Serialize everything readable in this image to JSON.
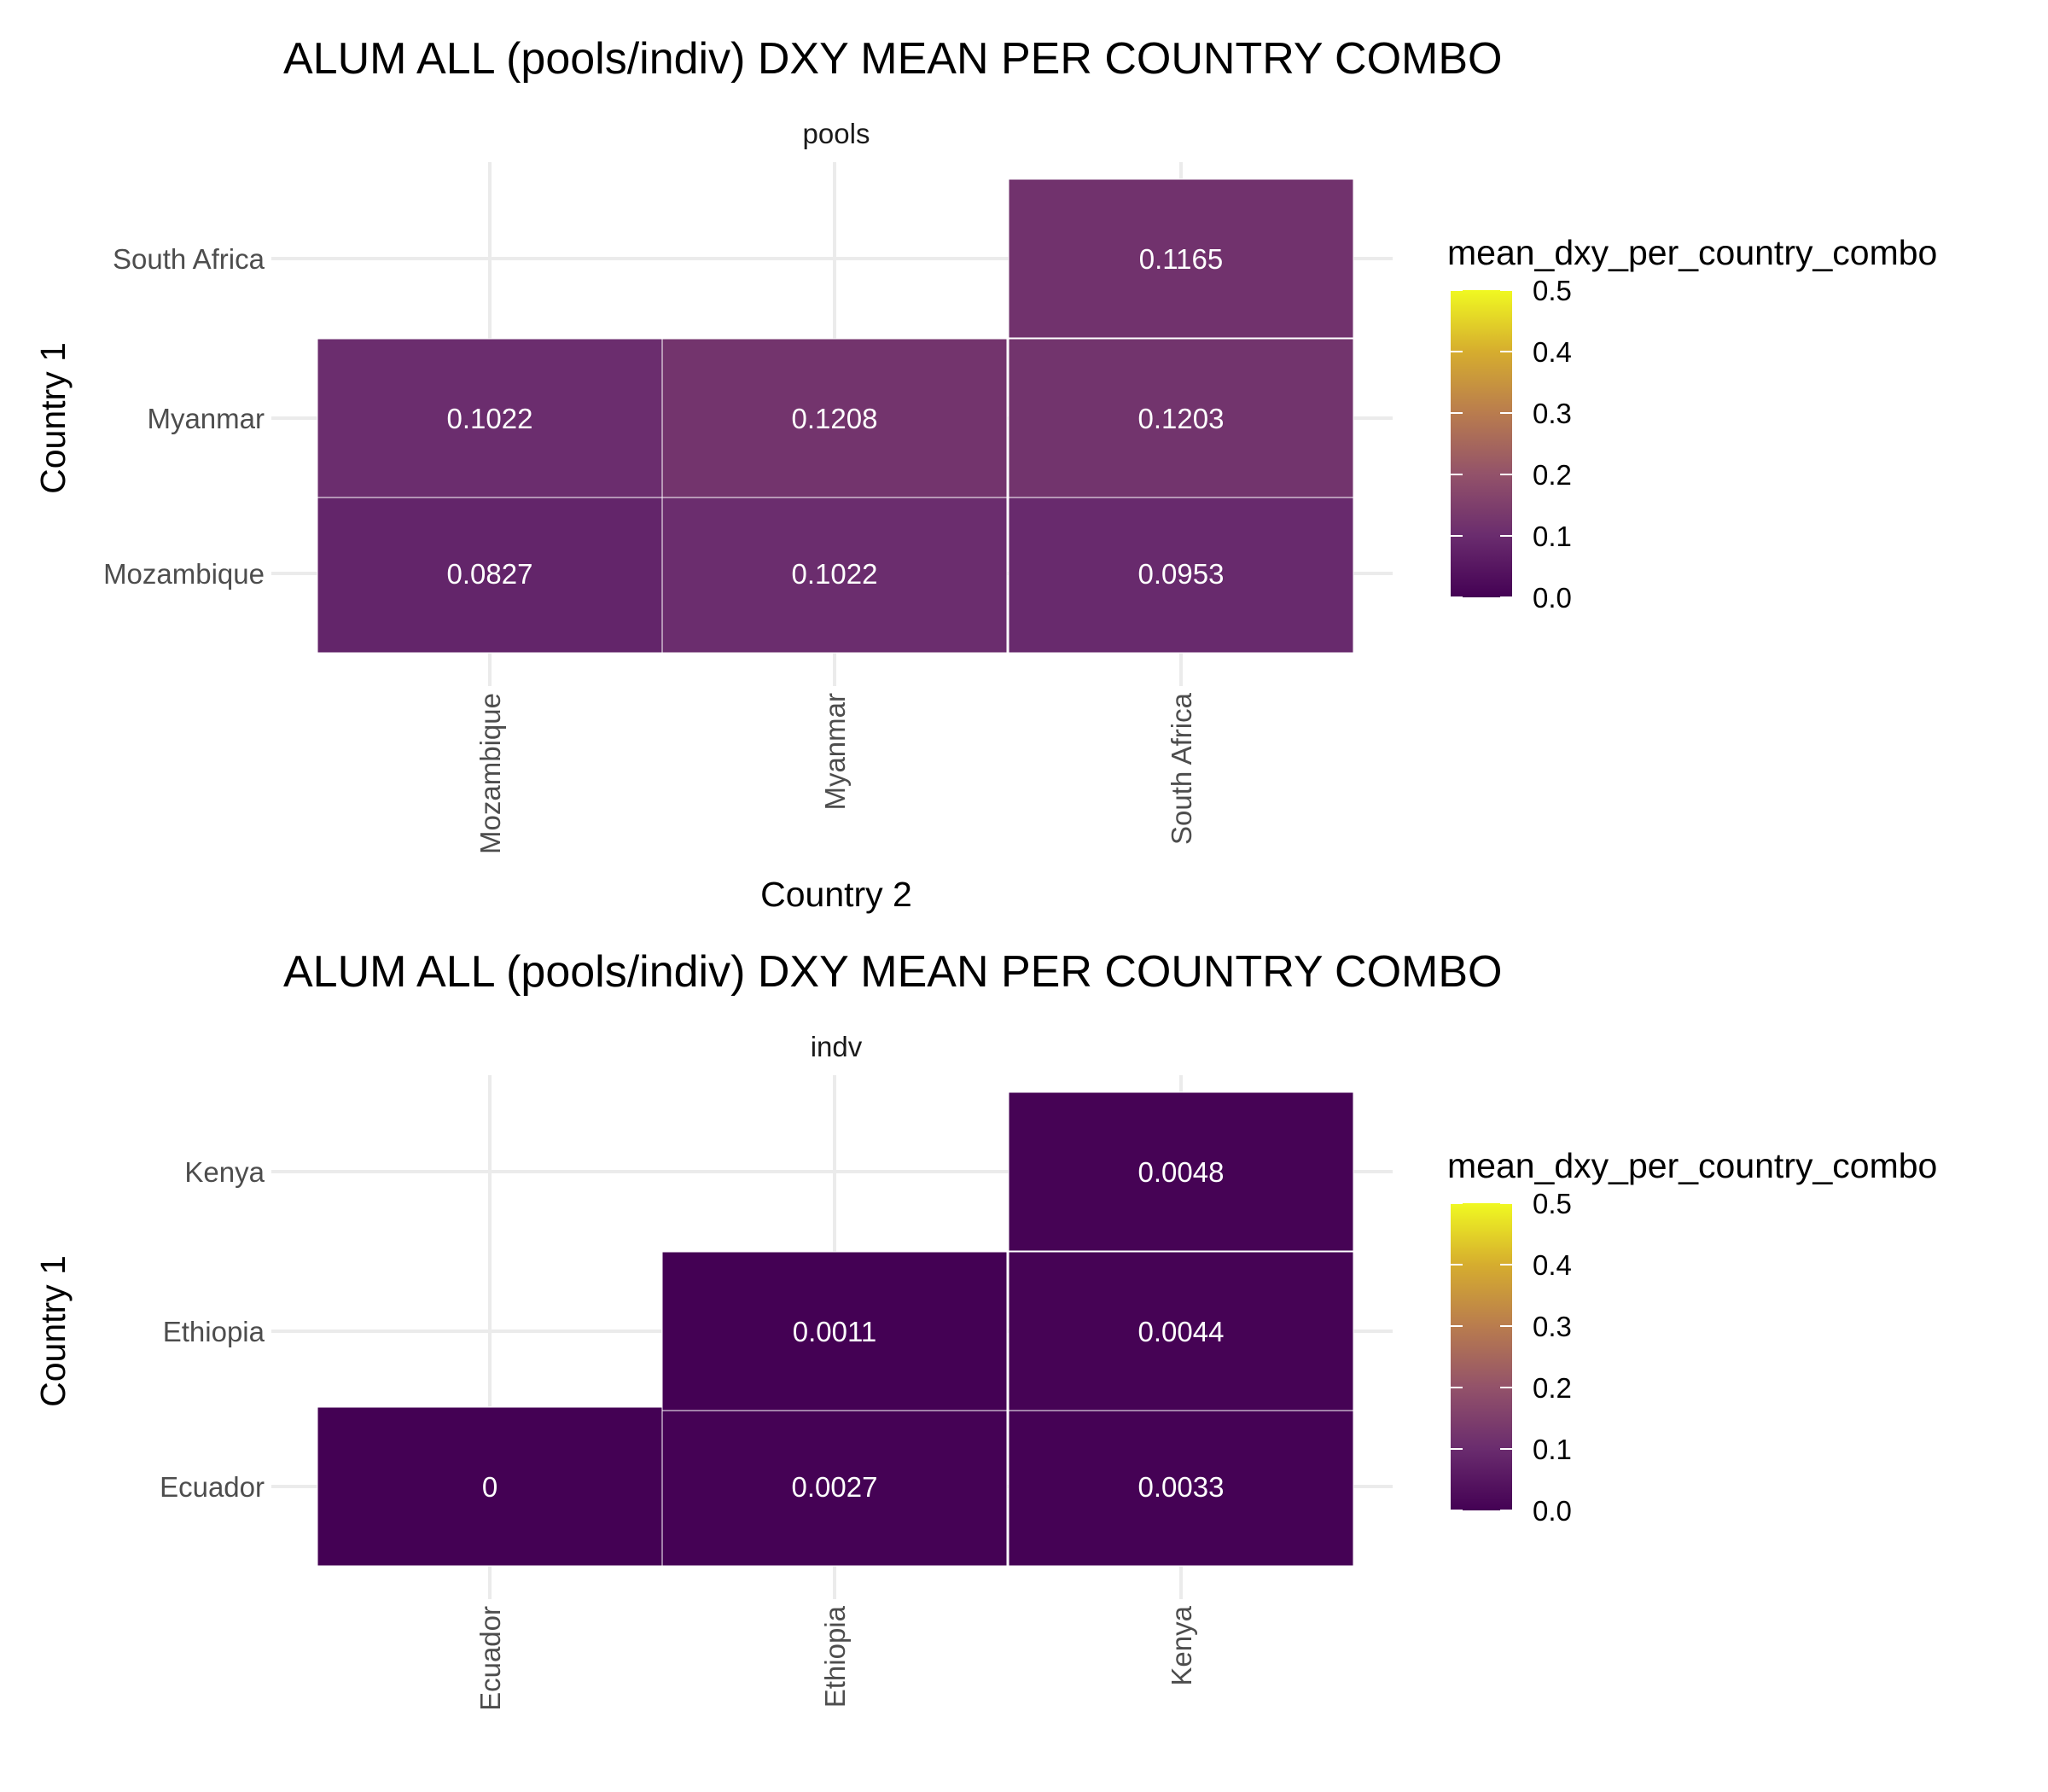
{
  "chart_data": [
    {
      "type": "heatmap",
      "title": "ALUM ALL (pools/indiv) DXY MEAN PER COUNTRY COMBO",
      "facet": "pools",
      "xlabel": "Country 2",
      "ylabel": "Country 1",
      "x_categories": [
        "Mozambique",
        "Myanmar",
        "South Africa"
      ],
      "y_categories": [
        "Mozambique",
        "Myanmar",
        "South Africa"
      ],
      "cells": [
        {
          "x": "Mozambique",
          "y": "Mozambique",
          "value": 0.0827,
          "label": "0.0827"
        },
        {
          "x": "Myanmar",
          "y": "Mozambique",
          "value": 0.1022,
          "label": "0.1022"
        },
        {
          "x": "South Africa",
          "y": "Mozambique",
          "value": 0.0953,
          "label": "0.0953"
        },
        {
          "x": "Mozambique",
          "y": "Myanmar",
          "value": 0.1022,
          "label": "0.1022"
        },
        {
          "x": "Myanmar",
          "y": "Myanmar",
          "value": 0.1208,
          "label": "0.1208"
        },
        {
          "x": "South Africa",
          "y": "Myanmar",
          "value": 0.1203,
          "label": "0.1203"
        },
        {
          "x": "South Africa",
          "y": "South Africa",
          "value": 0.1165,
          "label": "0.1165"
        }
      ],
      "legend": {
        "title": "mean_dxy_per_country_combo",
        "range": [
          0,
          0.5
        ],
        "ticks": [
          "0.0",
          "0.1",
          "0.2",
          "0.3",
          "0.4",
          "0.5"
        ],
        "position": "right"
      }
    },
    {
      "type": "heatmap",
      "title": "ALUM ALL (pools/indiv) DXY MEAN PER COUNTRY COMBO",
      "facet": "indv",
      "xlabel": "Country 2",
      "ylabel": "Country 1",
      "x_categories": [
        "Ecuador",
        "Ethiopia",
        "Kenya"
      ],
      "y_categories": [
        "Ecuador",
        "Ethiopia",
        "Kenya"
      ],
      "cells": [
        {
          "x": "Ecuador",
          "y": "Ecuador",
          "value": 0,
          "label": "0"
        },
        {
          "x": "Ethiopia",
          "y": "Ecuador",
          "value": 0.0027,
          "label": "0.0027"
        },
        {
          "x": "Kenya",
          "y": "Ecuador",
          "value": 0.0033,
          "label": "0.0033"
        },
        {
          "x": "Ethiopia",
          "y": "Ethiopia",
          "value": 0.0011,
          "label": "0.0011"
        },
        {
          "x": "Kenya",
          "y": "Ethiopia",
          "value": 0.0044,
          "label": "0.0044"
        },
        {
          "x": "Kenya",
          "y": "Kenya",
          "value": 0.0048,
          "label": "0.0048"
        }
      ],
      "legend": {
        "title": "mean_dxy_per_country_combo",
        "range": [
          0,
          0.5
        ],
        "ticks": [
          "0.0",
          "0.1",
          "0.2",
          "0.3",
          "0.4",
          "0.5"
        ],
        "position": "right"
      }
    }
  ],
  "colors": {
    "scale": [
      "#440154",
      "#7a3a65",
      "#ad6b52",
      "#d99a2e",
      "#f0f921"
    ],
    "background": "#ffffff",
    "grid": "#ebebeb",
    "cell_border": "#ffffff"
  }
}
